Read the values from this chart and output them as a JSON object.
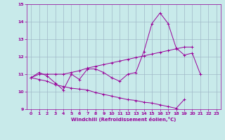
{
  "x": [
    0,
    1,
    2,
    3,
    4,
    5,
    6,
    7,
    8,
    9,
    10,
    11,
    12,
    13,
    14,
    15,
    16,
    17,
    18,
    19,
    20,
    21,
    22,
    23
  ],
  "line1": [
    10.8,
    11.1,
    10.9,
    10.5,
    10.1,
    11.0,
    10.7,
    11.3,
    11.3,
    11.1,
    10.8,
    10.6,
    11.0,
    11.1,
    12.3,
    13.9,
    14.5,
    13.9,
    12.5,
    12.1,
    12.2,
    11.0,
    null,
    null
  ],
  "line2": [
    10.8,
    11.0,
    11.0,
    11.0,
    11.0,
    11.1,
    11.2,
    11.35,
    11.45,
    11.55,
    11.65,
    11.75,
    11.85,
    11.95,
    12.05,
    12.15,
    12.25,
    12.35,
    12.45,
    12.55,
    12.55,
    null,
    null,
    null
  ],
  "line3": [
    10.8,
    10.7,
    10.6,
    10.4,
    10.3,
    10.2,
    10.15,
    10.1,
    9.95,
    9.85,
    9.75,
    9.65,
    9.55,
    9.5,
    9.4,
    9.35,
    9.25,
    9.15,
    9.05,
    9.55,
    null,
    null,
    null,
    null
  ],
  "color": "#990099",
  "bg_color": "#c8eaea",
  "grid_color": "#a0b8c8",
  "xlabel": "Windchill (Refroidissement éolien,°C)",
  "xlim": [
    -0.5,
    23.5
  ],
  "ylim": [
    9,
    15
  ],
  "yticks": [
    9,
    10,
    11,
    12,
    13,
    14,
    15
  ],
  "xticks": [
    0,
    1,
    2,
    3,
    4,
    5,
    6,
    7,
    8,
    9,
    10,
    11,
    12,
    13,
    14,
    15,
    16,
    17,
    18,
    19,
    20,
    21,
    22,
    23
  ]
}
